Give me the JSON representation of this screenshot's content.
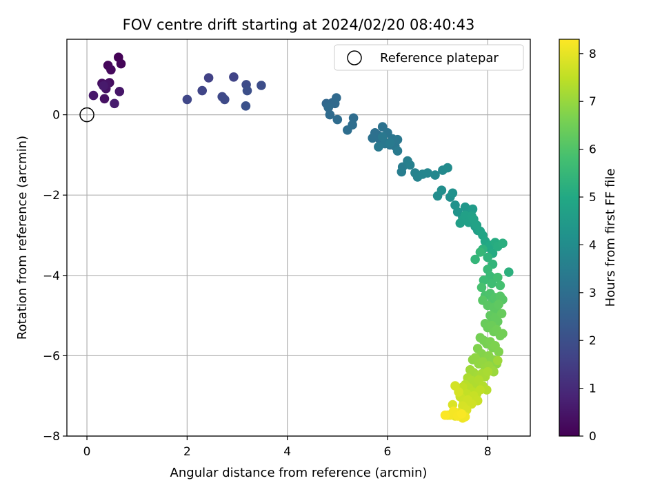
{
  "chart_data": {
    "type": "scatter",
    "title": "FOV centre drift starting at 2024/02/20 08:40:43",
    "xlabel": "Angular distance from reference (arcmin)",
    "ylabel": "Rotation from reference (arcmin)",
    "xlim": [
      -0.4,
      8.85
    ],
    "ylim": [
      -8,
      1.88
    ],
    "xticks": [
      0,
      2,
      4,
      6,
      8
    ],
    "yticks": [
      0,
      -2,
      -4,
      -6,
      -8
    ],
    "grid": true,
    "legend": {
      "label": "Reference platepar",
      "placement": "top-right"
    },
    "reference_point": {
      "x": 0,
      "y": 0
    },
    "colorbar": {
      "label": "Hours from first FF file",
      "colormap": "viridis",
      "range": [
        0,
        8.3
      ],
      "ticks": [
        0,
        1,
        2,
        3,
        4,
        5,
        6,
        7,
        8
      ]
    },
    "series": [
      {
        "x": [
          0.63,
          0.68,
          0.42,
          0.48,
          0.45,
          0.3,
          0.35,
          0.38,
          0.4,
          0.65,
          0.13,
          0.33,
          0.55,
          2.43,
          2.93,
          2.3,
          2.0,
          2.7,
          2.75,
          3.18,
          3.48,
          3.2,
          3.17,
          4.78,
          4.85,
          4.9,
          4.95,
          4.98,
          4.85,
          4.82,
          5.0,
          5.32,
          5.3,
          5.2,
          5.8,
          5.75,
          5.7,
          5.85,
          5.9,
          5.95,
          6.0,
          6.05,
          6.1,
          6.15,
          6.2,
          5.95,
          5.9,
          5.82,
          6.05,
          6.2,
          6.3,
          6.28,
          6.4,
          6.45,
          6.55,
          6.6,
          6.7,
          6.8,
          6.95,
          7.1,
          7.2,
          7.0,
          7.08,
          7.25,
          7.3,
          7.35,
          7.4,
          7.5,
          7.55,
          7.6,
          7.65,
          7.7,
          7.75,
          7.8,
          7.45,
          7.5,
          7.55,
          7.62,
          7.68,
          7.72,
          7.78,
          7.85,
          7.9,
          7.95,
          8.0,
          8.05,
          8.1,
          8.15,
          8.2,
          8.3,
          8.42,
          7.9,
          8.0,
          8.1,
          7.75,
          7.85,
          8.0,
          8.05,
          7.92,
          8.08,
          8.2,
          8.25,
          7.88,
          7.95,
          8.05,
          8.1,
          8.15,
          8.2,
          8.25,
          8.3,
          7.9,
          8.0,
          8.12,
          8.18,
          8.22,
          8.05,
          8.1,
          8.15,
          8.2,
          8.28,
          7.95,
          8.0,
          8.08,
          8.12,
          8.18,
          8.25,
          8.3,
          7.85,
          7.92,
          7.98,
          8.05,
          8.1,
          8.15,
          8.22,
          7.8,
          7.88,
          7.95,
          8.02,
          8.1,
          8.18,
          7.7,
          7.75,
          7.82,
          7.9,
          7.95,
          8.02,
          8.08,
          8.12,
          8.2,
          7.65,
          7.72,
          7.8,
          7.88,
          7.95,
          8.0,
          7.6,
          7.68,
          7.75,
          7.82,
          7.9,
          7.98,
          7.55,
          7.62,
          7.7,
          7.78,
          7.85,
          7.5,
          7.58,
          7.65,
          7.72,
          7.8,
          7.45,
          7.52,
          7.6,
          7.68,
          7.35,
          7.42,
          7.5,
          7.58,
          7.3,
          7.2,
          7.28,
          7.35,
          7.42,
          7.5,
          7.55,
          7.25,
          7.32,
          7.4,
          7.48,
          7.15
        ],
        "y": [
          1.43,
          1.27,
          1.23,
          1.12,
          0.8,
          0.78,
          0.4,
          0.65,
          0.76,
          0.58,
          0.48,
          0.72,
          0.28,
          0.92,
          0.94,
          0.6,
          0.38,
          0.45,
          0.38,
          0.75,
          0.73,
          0.6,
          0.22,
          0.28,
          0.25,
          0.3,
          0.28,
          0.42,
          0.0,
          0.18,
          -0.12,
          -0.08,
          -0.25,
          -0.38,
          -0.5,
          -0.45,
          -0.58,
          -0.62,
          -0.3,
          -0.7,
          -0.45,
          -0.75,
          -0.6,
          -0.78,
          -0.62,
          -0.72,
          -0.55,
          -0.8,
          -0.7,
          -0.9,
          -1.3,
          -1.42,
          -1.15,
          -1.25,
          -1.45,
          -1.55,
          -1.48,
          -1.45,
          -1.5,
          -1.38,
          -1.32,
          -2.02,
          -1.88,
          -2.05,
          -1.95,
          -2.25,
          -2.42,
          -2.55,
          -2.3,
          -2.45,
          -2.6,
          -2.35,
          -2.78,
          -2.88,
          -2.7,
          -2.62,
          -2.5,
          -2.68,
          -2.52,
          -2.6,
          -2.75,
          -2.9,
          -3.0,
          -3.15,
          -3.3,
          -3.25,
          -3.45,
          -3.18,
          -3.28,
          -3.2,
          -3.92,
          -3.35,
          -3.55,
          -3.72,
          -3.6,
          -3.42,
          -3.85,
          -4.02,
          -4.12,
          -4.2,
          -4.05,
          -4.25,
          -4.3,
          -4.5,
          -4.45,
          -4.62,
          -4.55,
          -4.68,
          -4.52,
          -4.6,
          -4.62,
          -4.75,
          -4.8,
          -4.88,
          -4.72,
          -5.0,
          -5.1,
          -5.05,
          -5.15,
          -4.95,
          -5.2,
          -5.3,
          -5.25,
          -5.4,
          -5.35,
          -5.5,
          -5.45,
          -5.55,
          -5.62,
          -5.7,
          -5.65,
          -5.8,
          -5.75,
          -5.9,
          -5.82,
          -5.95,
          -6.05,
          -6.0,
          -6.1,
          -6.2,
          -6.1,
          -6.05,
          -6.2,
          -6.15,
          -6.3,
          -6.25,
          -6.35,
          -6.4,
          -6.12,
          -6.35,
          -6.42,
          -6.5,
          -6.45,
          -6.52,
          -6.4,
          -6.55,
          -6.62,
          -6.7,
          -6.6,
          -6.75,
          -6.85,
          -6.72,
          -6.8,
          -6.9,
          -6.95,
          -6.85,
          -6.78,
          -6.95,
          -7.05,
          -7.0,
          -7.12,
          -7.02,
          -7.15,
          -7.1,
          -7.2,
          -6.75,
          -6.9,
          -7.25,
          -7.35,
          -7.22,
          -7.48,
          -7.45,
          -7.5,
          -7.42,
          -7.55,
          -7.52,
          -7.48,
          -7.38,
          -7.5,
          -7.45,
          -7.48
        ],
        "hours": [
          0.05,
          0.1,
          0.15,
          0.2,
          0.25,
          0.3,
          0.35,
          0.4,
          0.45,
          0.5,
          0.55,
          0.6,
          0.65,
          1.6,
          1.65,
          1.7,
          1.75,
          1.8,
          1.85,
          1.9,
          1.95,
          2.0,
          2.05,
          2.75,
          2.78,
          2.8,
          2.82,
          2.85,
          2.88,
          2.9,
          2.92,
          2.95,
          2.98,
          3.0,
          3.02,
          3.05,
          3.08,
          3.1,
          3.12,
          3.15,
          3.18,
          3.2,
          3.22,
          3.25,
          3.28,
          3.3,
          3.32,
          3.35,
          3.38,
          3.4,
          3.45,
          3.5,
          3.55,
          3.6,
          3.65,
          3.7,
          3.75,
          3.8,
          3.85,
          3.9,
          3.95,
          4.0,
          4.05,
          4.1,
          4.15,
          4.2,
          4.25,
          4.3,
          4.35,
          4.4,
          4.45,
          4.5,
          4.55,
          4.6,
          4.62,
          4.65,
          4.68,
          4.7,
          4.72,
          4.75,
          4.78,
          4.8,
          4.85,
          4.9,
          4.95,
          5.0,
          5.05,
          5.1,
          5.15,
          5.2,
          5.25,
          5.3,
          5.35,
          5.4,
          5.45,
          5.5,
          5.55,
          5.6,
          5.65,
          5.7,
          5.75,
          5.8,
          5.85,
          5.9,
          5.95,
          6.0,
          6.02,
          6.05,
          6.08,
          6.1,
          6.12,
          6.15,
          6.18,
          6.2,
          6.22,
          6.25,
          6.28,
          6.3,
          6.32,
          6.35,
          6.38,
          6.4,
          6.42,
          6.45,
          6.48,
          6.5,
          6.52,
          6.55,
          6.58,
          6.6,
          6.62,
          6.65,
          6.68,
          6.7,
          6.72,
          6.75,
          6.78,
          6.8,
          6.82,
          6.85,
          6.88,
          6.9,
          6.92,
          6.95,
          6.98,
          7.0,
          7.02,
          7.05,
          7.08,
          7.1,
          7.12,
          7.15,
          7.18,
          7.2,
          7.22,
          7.25,
          7.28,
          7.3,
          7.32,
          7.35,
          7.38,
          7.4,
          7.42,
          7.45,
          7.48,
          7.5,
          7.52,
          7.55,
          7.58,
          7.6,
          7.62,
          7.65,
          7.68,
          7.7,
          7.72,
          7.75,
          7.78,
          7.8,
          7.82,
          7.85,
          7.9,
          7.95,
          8.0,
          8.05,
          8.1,
          8.15,
          8.18,
          8.2,
          8.22,
          8.25,
          8.28
        ]
      }
    ]
  }
}
